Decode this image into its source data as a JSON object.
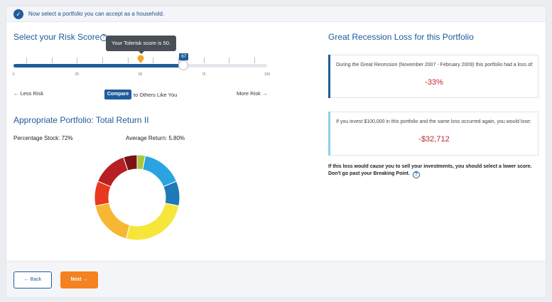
{
  "banner": {
    "message": "Now select a portfolio you can accept as a household."
  },
  "risk": {
    "heading": "Select your Risk Score",
    "tooltip": "Your Tolerisk score is 50.",
    "slider_value": 67,
    "slider_value_label": "67",
    "tolerisk_score": 50,
    "slider_min": 0,
    "slider_max": 100,
    "tick_labels": [
      "0",
      "25",
      "50",
      "75",
      "100"
    ],
    "less_risk": "← Less Risk",
    "more_risk": "More Risk →",
    "compare_button": "Compare",
    "compare_suffix": "to Others Like You"
  },
  "portfolio": {
    "heading": "Appropriate Portfolio: Total Return II",
    "percentage_stock": "Percentage Stock: 72%",
    "average_return": "Average Return: 5.80%",
    "allocation": [
      {
        "color": "#a8c93a",
        "value": 3
      },
      {
        "color": "#2aa3e0",
        "value": 15
      },
      {
        "color": "#1f78b8",
        "value": 9
      },
      {
        "color": "#f7e63a",
        "value": 25
      },
      {
        "color": "#f7b733",
        "value": 17
      },
      {
        "color": "#e8391f",
        "value": 9
      },
      {
        "color": "#b81f24",
        "value": 13
      },
      {
        "color": "#7a1414",
        "value": 5
      }
    ]
  },
  "recession": {
    "heading": "Great Recession Loss for this Portfolio",
    "period_text": "During the Great Recession (November 2007 - February 2009) this portfolio had a loss of:",
    "loss_percent": "-33%",
    "invest_text": "If you invest $100,000 in this portfolio and the same loss occurred again, you would lose:",
    "loss_amount": "-$32,712",
    "advice": "If this loss would cause you to sell your investments, you should select a lower score. Don't go past your Breaking Point.",
    "accent_dark": "#1f5d9c",
    "accent_light": "#8fd0ea"
  },
  "footer": {
    "back_label": "← Back",
    "next_label": "Next →"
  },
  "colors": {
    "primary": "#1f5d9c",
    "next_orange": "#f58220",
    "loss_red": "#c0272d"
  }
}
